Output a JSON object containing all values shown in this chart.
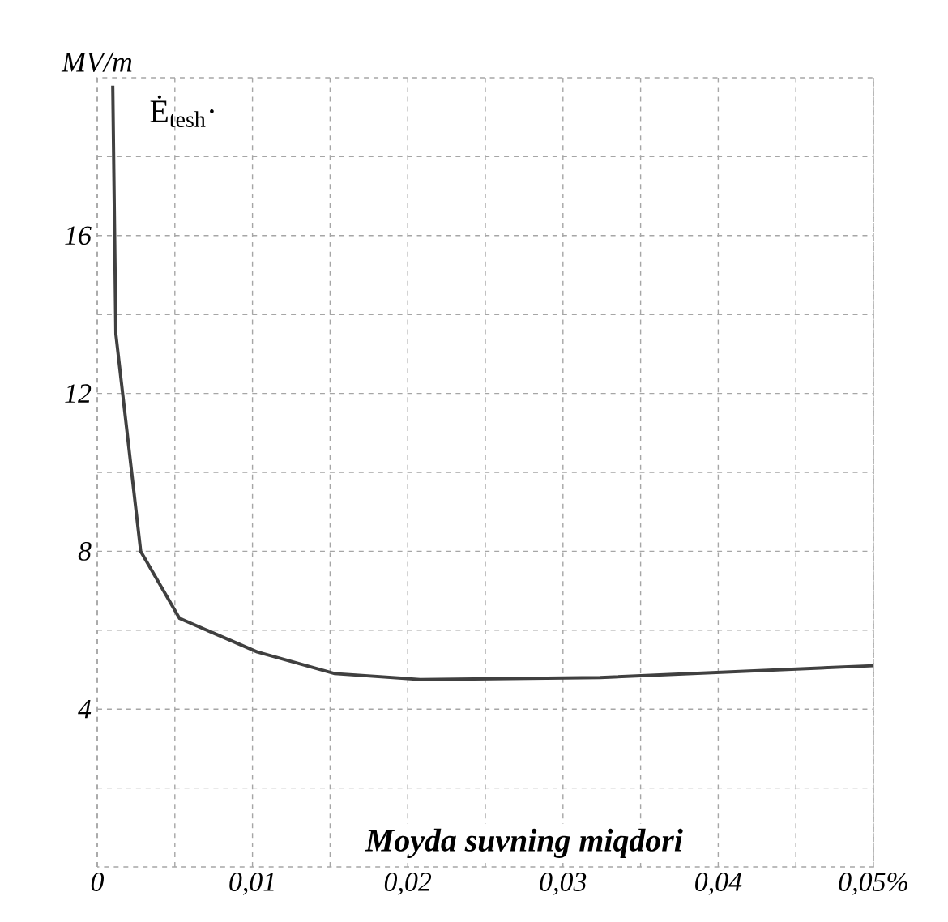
{
  "chart_data": {
    "type": "line",
    "ylabel": "MV/m",
    "xlabel": "Moyda suvning miqdori",
    "annotations": [
      "Ė$_{tesh}$·"
    ],
    "x": [
      0.001,
      0.0012,
      0.0028,
      0.0053,
      0.0103,
      0.0153,
      0.0208,
      0.0324,
      0.05
    ],
    "series": [
      {
        "color": "#404040",
        "values": [
          19.8,
          13.5,
          8,
          6.3,
          5.45,
          4.9,
          4.75,
          4.8,
          5.1
        ]
      }
    ],
    "xlim": [
      0,
      0.05
    ],
    "ylim": [
      0,
      20
    ],
    "xticks": [
      {
        "value": 0,
        "label": "0"
      },
      {
        "value": 0.005,
        "label": null
      },
      {
        "value": 0.01,
        "label": "0,01"
      },
      {
        "value": 0.015,
        "label": null
      },
      {
        "value": 0.02,
        "label": "0,02"
      },
      {
        "value": 0.025,
        "label": null
      },
      {
        "value": 0.03,
        "label": "0,03"
      },
      {
        "value": 0.035,
        "label": null
      },
      {
        "value": 0.04,
        "label": "0,04"
      },
      {
        "value": 0.045,
        "label": null
      },
      {
        "value": 0.05,
        "label": "0,05%"
      }
    ],
    "yticks": [
      {
        "value": 2,
        "label": null
      },
      4,
      {
        "value": 6,
        "label": null
      },
      8,
      {
        "value": 10,
        "label": null
      },
      12,
      {
        "value": 14,
        "label": null
      },
      16,
      {
        "value": 18,
        "label": null
      }
    ],
    "grid": true,
    "marker": "none",
    "line_style": "solid"
  }
}
